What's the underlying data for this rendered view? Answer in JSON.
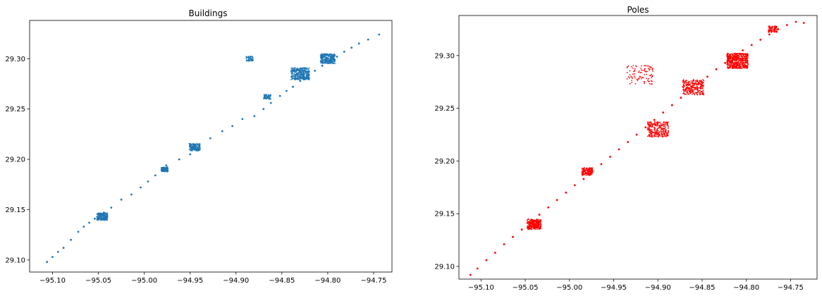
{
  "chart_data": [
    {
      "type": "scatter",
      "title": "Buildings",
      "color": "#1f77b4",
      "xlim": [
        -95.125,
        -94.73
      ],
      "ylim": [
        29.088,
        29.338
      ],
      "xticks": [
        -95.1,
        -95.05,
        -95.0,
        -94.95,
        -94.9,
        -94.85,
        -94.8,
        -94.75
      ],
      "xtick_labels": [
        "−95.10",
        "−95.05",
        "−95.00",
        "−94.95",
        "−94.90",
        "−94.85",
        "−94.80",
        "−94.75"
      ],
      "yticks": [
        29.1,
        29.15,
        29.2,
        29.25,
        29.3
      ],
      "ytick_labels": [
        "29.10",
        "29.15",
        "29.20",
        "29.25",
        "29.30"
      ],
      "series": [
        {
          "values": [
            [
              -95.106,
              29.098
            ],
            [
              -95.1,
              29.103
            ],
            [
              -95.094,
              29.108
            ],
            [
              -95.088,
              29.112
            ],
            [
              -95.08,
              29.12
            ],
            [
              -95.072,
              29.128
            ],
            [
              -95.066,
              29.133
            ],
            [
              -95.06,
              29.137
            ],
            [
              -95.054,
              29.141
            ],
            [
              -95.048,
              29.145
            ],
            [
              -95.044,
              29.147
            ],
            [
              -95.036,
              29.152
            ],
            [
              -95.025,
              29.16
            ],
            [
              -95.014,
              29.165
            ],
            [
              -95.004,
              29.172
            ],
            [
              -94.996,
              29.178
            ],
            [
              -94.988,
              29.184
            ],
            [
              -94.981,
              29.19
            ],
            [
              -94.976,
              29.194
            ],
            [
              -94.962,
              29.2
            ],
            [
              -94.95,
              29.205
            ],
            [
              -94.946,
              29.21
            ],
            [
              -94.94,
              29.214
            ],
            [
              -94.928,
              29.221
            ],
            [
              -94.915,
              29.228
            ],
            [
              -94.904,
              29.233
            ],
            [
              -94.893,
              29.24
            ],
            [
              -94.88,
              29.243
            ],
            [
              -94.87,
              29.25
            ],
            [
              -94.862,
              29.256
            ],
            [
              -94.852,
              29.263
            ],
            [
              -94.845,
              29.268
            ],
            [
              -94.838,
              29.272
            ],
            [
              -94.83,
              29.278
            ],
            [
              -94.822,
              29.283
            ],
            [
              -94.814,
              29.288
            ],
            [
              -94.806,
              29.293
            ],
            [
              -94.798,
              29.298
            ],
            [
              -94.79,
              29.302
            ],
            [
              -94.782,
              29.307
            ],
            [
              -94.774,
              29.311
            ],
            [
              -94.766,
              29.315
            ],
            [
              -94.756,
              29.319
            ],
            [
              -94.744,
              29.324
            ]
          ],
          "clusters": [
            {
              "x": -95.046,
              "y": 29.143,
              "spread": 0.006,
              "n": 220
            },
            {
              "x": -94.978,
              "y": 29.19,
              "spread": 0.004,
              "n": 120
            },
            {
              "x": -94.945,
              "y": 29.212,
              "spread": 0.006,
              "n": 160
            },
            {
              "x": -94.83,
              "y": 29.285,
              "spread": 0.01,
              "n": 360
            },
            {
              "x": -94.8,
              "y": 29.3,
              "spread": 0.008,
              "n": 320
            },
            {
              "x": -94.866,
              "y": 29.262,
              "spread": 0.004,
              "n": 70
            },
            {
              "x": -94.885,
              "y": 29.3,
              "spread": 0.004,
              "n": 50
            }
          ]
        }
      ]
    },
    {
      "type": "scatter",
      "title": "Poles",
      "color": "#ff0000",
      "xlim": [
        -95.125,
        -94.72
      ],
      "ylim": [
        29.088,
        29.338
      ],
      "xticks": [
        -95.1,
        -95.05,
        -95.0,
        -94.95,
        -94.9,
        -94.85,
        -94.8,
        -94.75
      ],
      "xtick_labels": [
        "−95.10",
        "−95.05",
        "−95.00",
        "−94.95",
        "−94.90",
        "−94.85",
        "−94.80",
        "−94.75"
      ],
      "yticks": [
        29.1,
        29.15,
        29.2,
        29.25,
        29.3
      ],
      "ytick_labels": [
        "29.10",
        "29.15",
        "29.20",
        "29.25",
        "29.30"
      ],
      "series": [
        {
          "values": [
            [
              -95.112,
              29.092
            ],
            [
              -95.104,
              29.098
            ],
            [
              -95.094,
              29.106
            ],
            [
              -95.084,
              29.113
            ],
            [
              -95.074,
              29.121
            ],
            [
              -95.064,
              29.128
            ],
            [
              -95.054,
              29.135
            ],
            [
              -95.044,
              29.142
            ],
            [
              -95.034,
              29.149
            ],
            [
              -95.024,
              29.156
            ],
            [
              -95.014,
              29.163
            ],
            [
              -95.004,
              29.17
            ],
            [
              -94.994,
              29.177
            ],
            [
              -94.984,
              29.183
            ],
            [
              -94.974,
              29.19
            ],
            [
              -94.964,
              29.197
            ],
            [
              -94.954,
              29.204
            ],
            [
              -94.944,
              29.211
            ],
            [
              -94.934,
              29.218
            ],
            [
              -94.924,
              29.225
            ],
            [
              -94.914,
              29.232
            ],
            [
              -94.904,
              29.239
            ],
            [
              -94.894,
              29.246
            ],
            [
              -94.884,
              29.253
            ],
            [
              -94.874,
              29.26
            ],
            [
              -94.864,
              29.266
            ],
            [
              -94.854,
              29.273
            ],
            [
              -94.844,
              29.28
            ],
            [
              -94.834,
              29.287
            ],
            [
              -94.824,
              29.293
            ],
            [
              -94.814,
              29.299
            ],
            [
              -94.804,
              29.305
            ],
            [
              -94.794,
              29.31
            ],
            [
              -94.784,
              29.315
            ],
            [
              -94.774,
              29.32
            ],
            [
              -94.764,
              29.325
            ],
            [
              -94.754,
              29.329
            ],
            [
              -94.744,
              29.332
            ],
            [
              -94.735,
              29.331
            ]
          ],
          "clusters": [
            {
              "x": -95.04,
              "y": 29.14,
              "spread": 0.008,
              "n": 260
            },
            {
              "x": -94.98,
              "y": 29.19,
              "spread": 0.006,
              "n": 150
            },
            {
              "x": -94.9,
              "y": 29.23,
              "spread": 0.012,
              "n": 260
            },
            {
              "x": -94.86,
              "y": 29.27,
              "spread": 0.012,
              "n": 260
            },
            {
              "x": -94.81,
              "y": 29.295,
              "spread": 0.012,
              "n": 520
            },
            {
              "x": -94.92,
              "y": 29.282,
              "spread": 0.015,
              "n": 90
            },
            {
              "x": -94.77,
              "y": 29.325,
              "spread": 0.005,
              "n": 80
            }
          ]
        }
      ]
    }
  ]
}
